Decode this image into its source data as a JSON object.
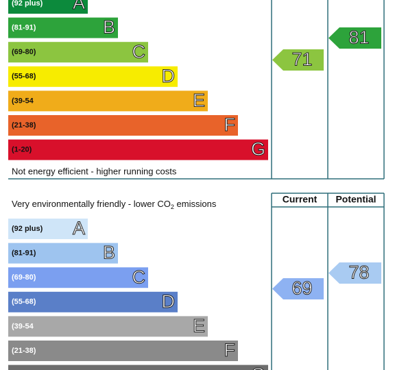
{
  "energy": {
    "bands": [
      {
        "range": "(92 plus)",
        "letter": "A",
        "color": "#0c8a3c",
        "text_color": "#fff"
      },
      {
        "range": "(81-91)",
        "letter": "B",
        "color": "#2da33b",
        "text_color": "#fff"
      },
      {
        "range": "(69-80)",
        "letter": "C",
        "color": "#8cc540",
        "text_color": "#111"
      },
      {
        "range": "(55-68)",
        "letter": "D",
        "color": "#f7ec00",
        "text_color": "#111"
      },
      {
        "range": "(39-54",
        "letter": "E",
        "color": "#f0ac1a",
        "text_color": "#111"
      },
      {
        "range": "(21-38)",
        "letter": "F",
        "color": "#e8632a",
        "text_color": "#111"
      },
      {
        "range": "(1-20)",
        "letter": "G",
        "color": "#d8102b",
        "text_color": "#111"
      }
    ],
    "footer": "Not energy efficient - higher running costs",
    "current": 71,
    "current_color": "#8cc540",
    "potential": 81,
    "potential_color": "#2da33b"
  },
  "environmental": {
    "header_current": "Current",
    "header_potential": "Potential",
    "intro_prefix": "Very environmentally friendly - lower CO",
    "intro_sub": "2",
    "intro_suffix": " emissions",
    "bands": [
      {
        "range": "(92 plus)",
        "letter": "A",
        "color": "#cfe5f8",
        "text_color": "#111"
      },
      {
        "range": "(81-91)",
        "letter": "B",
        "color": "#9ec4ef",
        "text_color": "#111"
      },
      {
        "range": "(69-80)",
        "letter": "C",
        "color": "#7b9ff0",
        "text_color": "#fff"
      },
      {
        "range": "(55-68)",
        "letter": "D",
        "color": "#5a7fc8",
        "text_color": "#fff"
      },
      {
        "range": "(39-54",
        "letter": "E",
        "color": "#a8a8a8",
        "text_color": "#fff"
      },
      {
        "range": "(21-38)",
        "letter": "F",
        "color": "#8a8a8a",
        "text_color": "#fff"
      },
      {
        "letter": "G",
        "color": "#6e6e6e"
      }
    ],
    "current": 69,
    "current_color": "#8eb2f2",
    "potential": 78,
    "potential_color": "#a9cbf2"
  }
}
